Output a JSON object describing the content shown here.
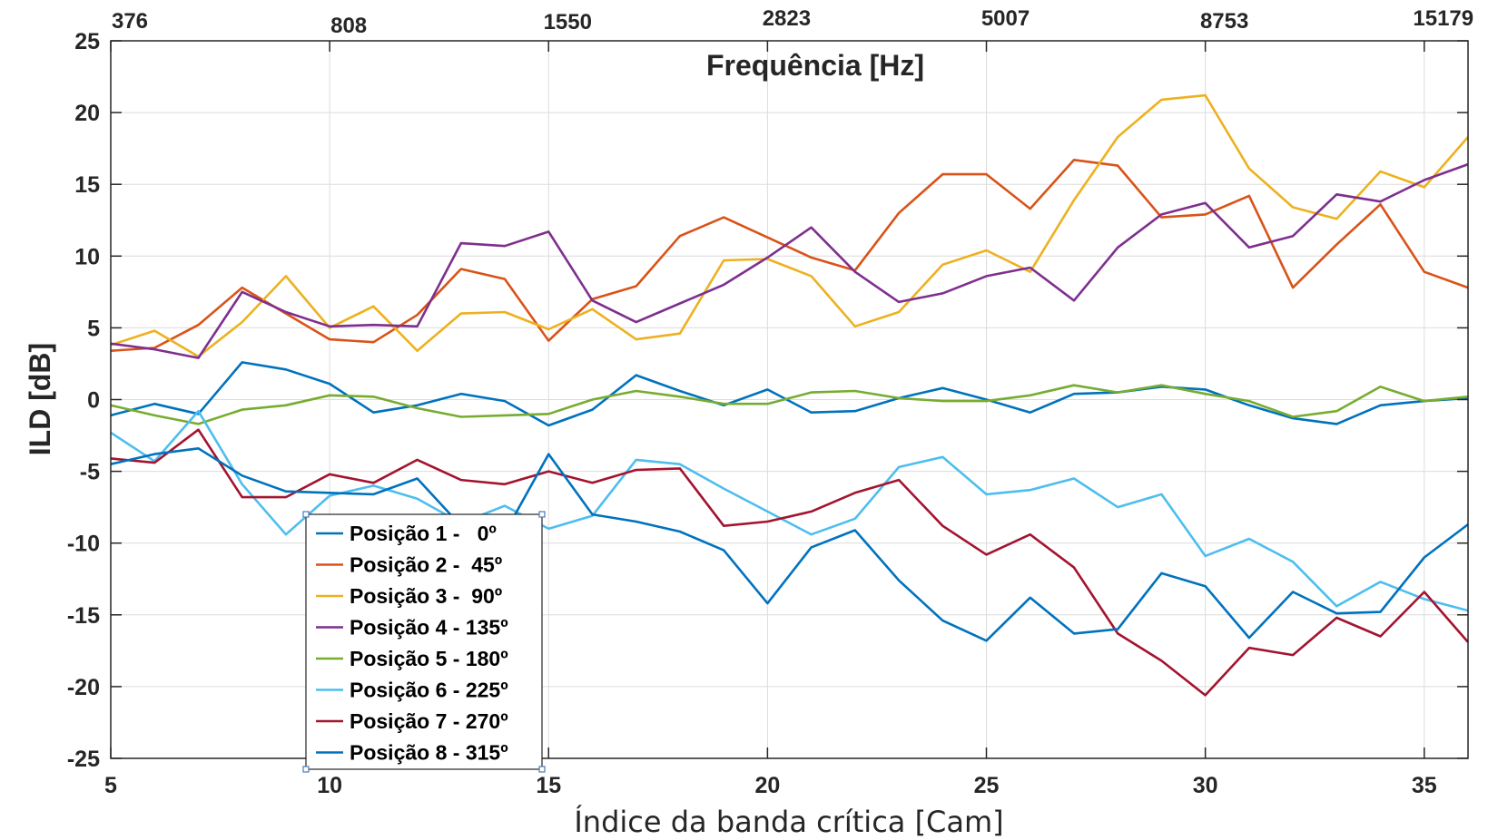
{
  "chart_data": {
    "type": "line",
    "xlabel": "Índice da banda crítica [Cam]",
    "ylabel": "ILD [dB]",
    "top_xlabel": "Frequência [Hz]",
    "xlim": [
      5,
      36
    ],
    "ylim": [
      -25,
      25
    ],
    "x_ticks": [
      5,
      10,
      15,
      20,
      25,
      30,
      35
    ],
    "y_ticks": [
      -25,
      -20,
      -15,
      -10,
      -5,
      0,
      5,
      10,
      15,
      20,
      25
    ],
    "top_ticks": [
      {
        "x": 5,
        "label": "376"
      },
      {
        "x": 10,
        "label": "808"
      },
      {
        "x": 15,
        "label": "1550"
      },
      {
        "x": 20,
        "label": "2823"
      },
      {
        "x": 25,
        "label": "5007"
      },
      {
        "x": 30,
        "label": "8753"
      },
      {
        "x": 35,
        "label": "15179"
      }
    ],
    "grid": true,
    "legend_position": "lower-left",
    "x": [
      5,
      6,
      7,
      8,
      9,
      10,
      11,
      12,
      13,
      14,
      15,
      16,
      17,
      18,
      19,
      20,
      21,
      22,
      23,
      24,
      25,
      26,
      27,
      28,
      29,
      30,
      31,
      32,
      33,
      34,
      35,
      36
    ],
    "series": [
      {
        "name": "Posição 1 -   0º",
        "color": "#0072BD",
        "values": [
          -1.1,
          -0.3,
          -1.0,
          2.6,
          2.1,
          1.1,
          -0.9,
          -0.4,
          0.4,
          -0.1,
          -1.8,
          -0.7,
          1.7,
          0.6,
          -0.4,
          0.7,
          -0.9,
          -0.8,
          0.1,
          0.8,
          0.0,
          -0.9,
          0.4,
          0.5,
          0.9,
          0.7,
          -0.4,
          -1.3,
          -1.7,
          -0.4,
          -0.1,
          0.1
        ]
      },
      {
        "name": "Posição 2 -  45º",
        "color": "#D95319",
        "values": [
          3.4,
          3.6,
          5.2,
          7.8,
          6.0,
          4.2,
          4.0,
          5.9,
          9.1,
          8.4,
          4.1,
          7.0,
          7.9,
          11.4,
          12.7,
          11.3,
          9.9,
          9.0,
          13.0,
          15.7,
          15.7,
          13.3,
          16.7,
          16.3,
          12.7,
          12.9,
          14.2,
          7.8,
          10.8,
          13.6,
          8.9,
          7.8
        ]
      },
      {
        "name": "Posição 3 -  90º",
        "color": "#EDB120",
        "values": [
          3.8,
          4.8,
          3.0,
          5.4,
          8.6,
          5.0,
          6.5,
          3.4,
          6.0,
          6.1,
          4.9,
          6.3,
          4.2,
          4.6,
          9.7,
          9.8,
          8.6,
          5.1,
          6.1,
          9.4,
          10.4,
          8.9,
          13.9,
          18.3,
          20.9,
          21.2,
          16.1,
          13.4,
          12.6,
          15.9,
          14.8,
          18.3
        ]
      },
      {
        "name": "Posição 4 - 135º",
        "color": "#7E2F8E",
        "values": [
          3.9,
          3.5,
          2.9,
          7.5,
          6.1,
          5.1,
          5.2,
          5.1,
          10.9,
          10.7,
          11.7,
          6.9,
          5.4,
          6.7,
          8.0,
          9.9,
          12.0,
          8.9,
          6.8,
          7.4,
          8.6,
          9.2,
          6.9,
          10.6,
          12.9,
          13.7,
          10.6,
          11.4,
          14.3,
          13.8,
          15.3,
          16.4
        ]
      },
      {
        "name": "Posição 5 - 180º",
        "color": "#77AC30",
        "values": [
          -0.4,
          -1.1,
          -1.7,
          -0.7,
          -0.4,
          0.3,
          0.2,
          -0.6,
          -1.2,
          -1.1,
          -1.0,
          0.0,
          0.6,
          0.2,
          -0.3,
          -0.3,
          0.5,
          0.6,
          0.1,
          -0.1,
          -0.1,
          0.3,
          1.0,
          0.5,
          1.0,
          0.4,
          -0.1,
          -1.2,
          -0.8,
          0.9,
          -0.1,
          0.2
        ]
      },
      {
        "name": "Posição 6 - 225º",
        "color": "#4DBEEE",
        "values": [
          -2.3,
          -4.3,
          -0.8,
          -5.9,
          -9.4,
          -6.7,
          -6.0,
          -6.9,
          -8.6,
          -7.4,
          -9.0,
          -8.1,
          -4.2,
          -4.5,
          -6.2,
          -7.8,
          -9.4,
          -8.3,
          -4.7,
          -4.0,
          -6.6,
          -6.3,
          -5.5,
          -7.5,
          -6.6,
          -10.9,
          -9.7,
          -11.3,
          -14.4,
          -12.7,
          -13.9,
          -14.7
        ]
      },
      {
        "name": "Posição 7 - 270º",
        "color": "#A2142F",
        "values": [
          -4.1,
          -4.4,
          -2.1,
          -6.8,
          -6.8,
          -5.2,
          -5.8,
          -4.2,
          -5.6,
          -5.9,
          -5.0,
          -5.8,
          -4.9,
          -4.8,
          -8.8,
          -8.5,
          -7.8,
          -6.5,
          -5.6,
          -8.8,
          -10.8,
          -9.4,
          -11.7,
          -16.3,
          -18.2,
          -20.6,
          -17.3,
          -17.8,
          -15.2,
          -16.5,
          -13.4,
          -16.9
        ]
      },
      {
        "name": "Posição 8 - 315º",
        "color": "#0072BD",
        "values": [
          -4.5,
          -3.8,
          -3.4,
          -5.3,
          -6.4,
          -6.5,
          -6.6,
          -5.5,
          -8.8,
          -9.3,
          -3.8,
          -8.0,
          -8.5,
          -9.2,
          -10.5,
          -14.2,
          -10.3,
          -9.1,
          -12.6,
          -15.4,
          -16.8,
          -13.8,
          -16.3,
          -16.0,
          -12.1,
          -13.0,
          -16.6,
          -13.4,
          -14.9,
          -14.8,
          -11.0,
          -8.7
        ]
      }
    ]
  }
}
